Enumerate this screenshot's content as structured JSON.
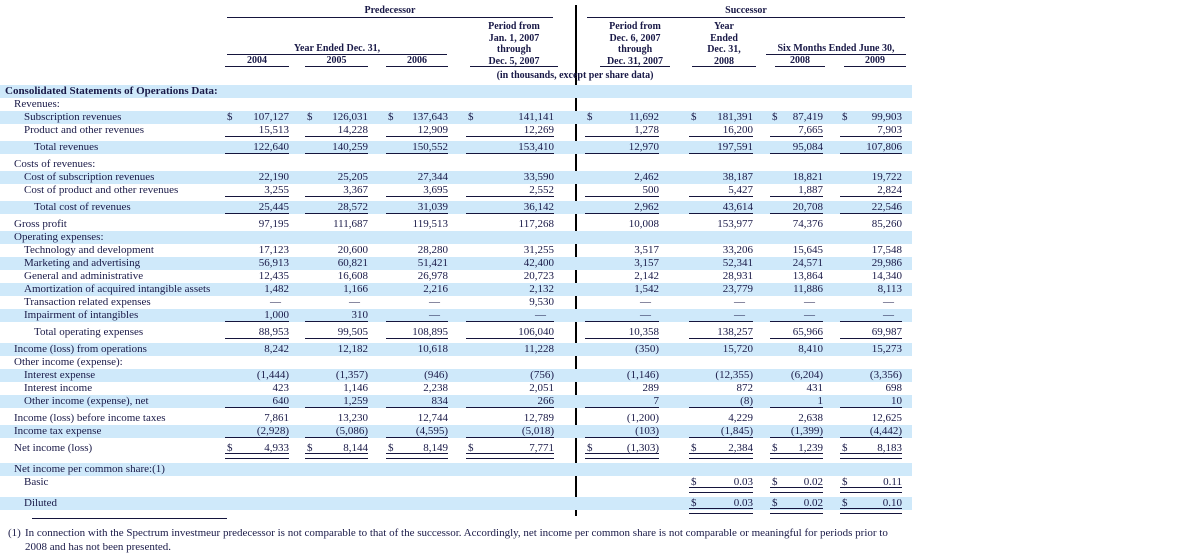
{
  "colors": {
    "highlight": "#cfe9fa",
    "text": "#191947"
  },
  "table": {
    "currency_symbol": "$",
    "header": {
      "predecessor_label": "Predecessor",
      "successor_label": "Successor",
      "year_ended_label": "Year Ended Dec. 31,",
      "years": [
        "2004",
        "2005",
        "2006"
      ],
      "period1": [
        "Period from",
        "Jan. 1, 2007",
        "through",
        "Dec. 5, 2007"
      ],
      "period2": [
        "Period from",
        "Dec. 6, 2007",
        "through",
        "Dec. 31, 2007"
      ],
      "year_2008": [
        "Year",
        "Ended",
        "Dec. 31,",
        "2008"
      ],
      "six_months_label": "Six Months Ended June 30,",
      "six_months_years": [
        "2008",
        "2009"
      ],
      "units_note": "(in thousands, except per share data)"
    },
    "rows": [
      {
        "label": "Consolidated Statements of Operations Data:",
        "indent": 0,
        "shaded": true,
        "bold": true
      },
      {
        "label": "Revenues:",
        "indent": 1,
        "shaded": false
      },
      {
        "label": "Subscription revenues",
        "indent": 2,
        "shaded": true,
        "dollar": true,
        "values": [
          "107,127",
          "126,031",
          "137,643",
          "141,141",
          "11,692",
          "181,391",
          "87,419",
          "99,903"
        ]
      },
      {
        "label": "Product and other revenues",
        "indent": 2,
        "shaded": false,
        "values": [
          "15,513",
          "14,228",
          "12,909",
          "12,269",
          "1,278",
          "16,200",
          "7,665",
          "7,903"
        ],
        "rule": "single"
      },
      {
        "label": "Total revenues",
        "indent": 3,
        "shaded": true,
        "values": [
          "122,640",
          "140,259",
          "150,552",
          "153,410",
          "12,970",
          "197,591",
          "95,084",
          "107,806"
        ],
        "rule": "single"
      },
      {
        "label": "Costs of revenues:",
        "indent": 1,
        "shaded": false
      },
      {
        "label": "Cost of subscription revenues",
        "indent": 2,
        "shaded": true,
        "values": [
          "22,190",
          "25,205",
          "27,344",
          "33,590",
          "2,462",
          "38,187",
          "18,821",
          "19,722"
        ]
      },
      {
        "label": "Cost of product and other revenues",
        "indent": 2,
        "shaded": false,
        "values": [
          "3,255",
          "3,367",
          "3,695",
          "2,552",
          "500",
          "5,427",
          "1,887",
          "2,824"
        ],
        "rule": "single"
      },
      {
        "label": "Total cost of revenues",
        "indent": 3,
        "shaded": true,
        "values": [
          "25,445",
          "28,572",
          "31,039",
          "36,142",
          "2,962",
          "43,614",
          "20,708",
          "22,546"
        ],
        "rule": "single"
      },
      {
        "label": "Gross profit",
        "indent": 1,
        "shaded": false,
        "values": [
          "97,195",
          "111,687",
          "119,513",
          "117,268",
          "10,008",
          "153,977",
          "74,376",
          "85,260"
        ]
      },
      {
        "label": "Operating expenses:",
        "indent": 1,
        "shaded": true
      },
      {
        "label": "Technology and development",
        "indent": 2,
        "shaded": false,
        "values": [
          "17,123",
          "20,600",
          "28,280",
          "31,255",
          "3,517",
          "33,206",
          "15,645",
          "17,548"
        ]
      },
      {
        "label": "Marketing and advertising",
        "indent": 2,
        "shaded": true,
        "values": [
          "56,913",
          "60,821",
          "51,421",
          "42,400",
          "3,157",
          "52,341",
          "24,571",
          "29,986"
        ]
      },
      {
        "label": "General and administrative",
        "indent": 2,
        "shaded": false,
        "values": [
          "12,435",
          "16,608",
          "26,978",
          "20,723",
          "2,142",
          "28,931",
          "13,864",
          "14,340"
        ]
      },
      {
        "label": "Amortization of acquired intangible assets",
        "indent": 2,
        "shaded": true,
        "values": [
          "1,482",
          "1,166",
          "2,216",
          "2,132",
          "1,542",
          "23,779",
          "11,886",
          "8,113"
        ]
      },
      {
        "label": "Transaction related expenses",
        "indent": 2,
        "shaded": false,
        "values": [
          "—",
          "—",
          "—",
          "9,530",
          "—",
          "—",
          "—",
          "—"
        ]
      },
      {
        "label": "Impairment of intangibles",
        "indent": 2,
        "shaded": true,
        "values": [
          "1,000",
          "310",
          "—",
          "—",
          "—",
          "—",
          "—",
          "—"
        ],
        "rule": "single"
      },
      {
        "label": "Total operating expenses",
        "indent": 3,
        "shaded": false,
        "values": [
          "88,953",
          "99,505",
          "108,895",
          "106,040",
          "10,358",
          "138,257",
          "65,966",
          "69,987"
        ],
        "rule": "single"
      },
      {
        "label": "Income (loss) from operations",
        "indent": 1,
        "shaded": true,
        "values": [
          "8,242",
          "12,182",
          "10,618",
          "11,228",
          "(350)",
          "15,720",
          "8,410",
          "15,273"
        ]
      },
      {
        "label": "Other income (expense):",
        "indent": 1,
        "shaded": false
      },
      {
        "label": "Interest expense",
        "indent": 2,
        "shaded": true,
        "values": [
          "(1,444)",
          "(1,357)",
          "(946)",
          "(756)",
          "(1,146)",
          "(12,355)",
          "(6,204)",
          "(3,356)"
        ]
      },
      {
        "label": "Interest income",
        "indent": 2,
        "shaded": false,
        "values": [
          "423",
          "1,146",
          "2,238",
          "2,051",
          "289",
          "872",
          "431",
          "698"
        ]
      },
      {
        "label": "Other income (expense), net",
        "indent": 2,
        "shaded": true,
        "values": [
          "640",
          "1,259",
          "834",
          "266",
          "7",
          "(8)",
          "1",
          "10"
        ],
        "rule": "single"
      },
      {
        "label": "Income (loss) before income taxes",
        "indent": 1,
        "shaded": false,
        "values": [
          "7,861",
          "13,230",
          "12,744",
          "12,789",
          "(1,200)",
          "4,229",
          "2,638",
          "12,625"
        ]
      },
      {
        "label": "Income tax expense",
        "indent": 1,
        "shaded": true,
        "values": [
          "(2,928)",
          "(5,086)",
          "(4,595)",
          "(5,018)",
          "(103)",
          "(1,845)",
          "(1,399)",
          "(4,442)"
        ],
        "rule": "single"
      },
      {
        "label": "Net income (loss)",
        "indent": 1,
        "shaded": false,
        "dollar": true,
        "values": [
          "4,933",
          "8,144",
          "8,149",
          "7,771",
          "(1,303)",
          "2,384",
          "1,239",
          "8,183"
        ],
        "rule": "double"
      },
      {
        "label": "Net income per common share:(1)",
        "indent": 1,
        "shaded": true
      },
      {
        "label": "Basic",
        "indent": 2,
        "shaded": false,
        "dollar": true,
        "values": [
          "",
          "",
          "",
          "",
          "",
          "0.03",
          "0.02",
          "0.11"
        ],
        "rule": "double"
      },
      {
        "label": "Diluted",
        "indent": 2,
        "shaded": true,
        "dollar": true,
        "values": [
          "",
          "",
          "",
          "",
          "",
          "0.03",
          "0.02",
          "0.10"
        ],
        "rule": "double"
      }
    ]
  },
  "footnote": {
    "marker": "(1)",
    "text": "In connection with the Spectrum investmeur predecessor is not comparable to that of the successor. Accordingly, net income per common share is not comparable or meaningful for periods prior to 2008 and has not been presented."
  }
}
